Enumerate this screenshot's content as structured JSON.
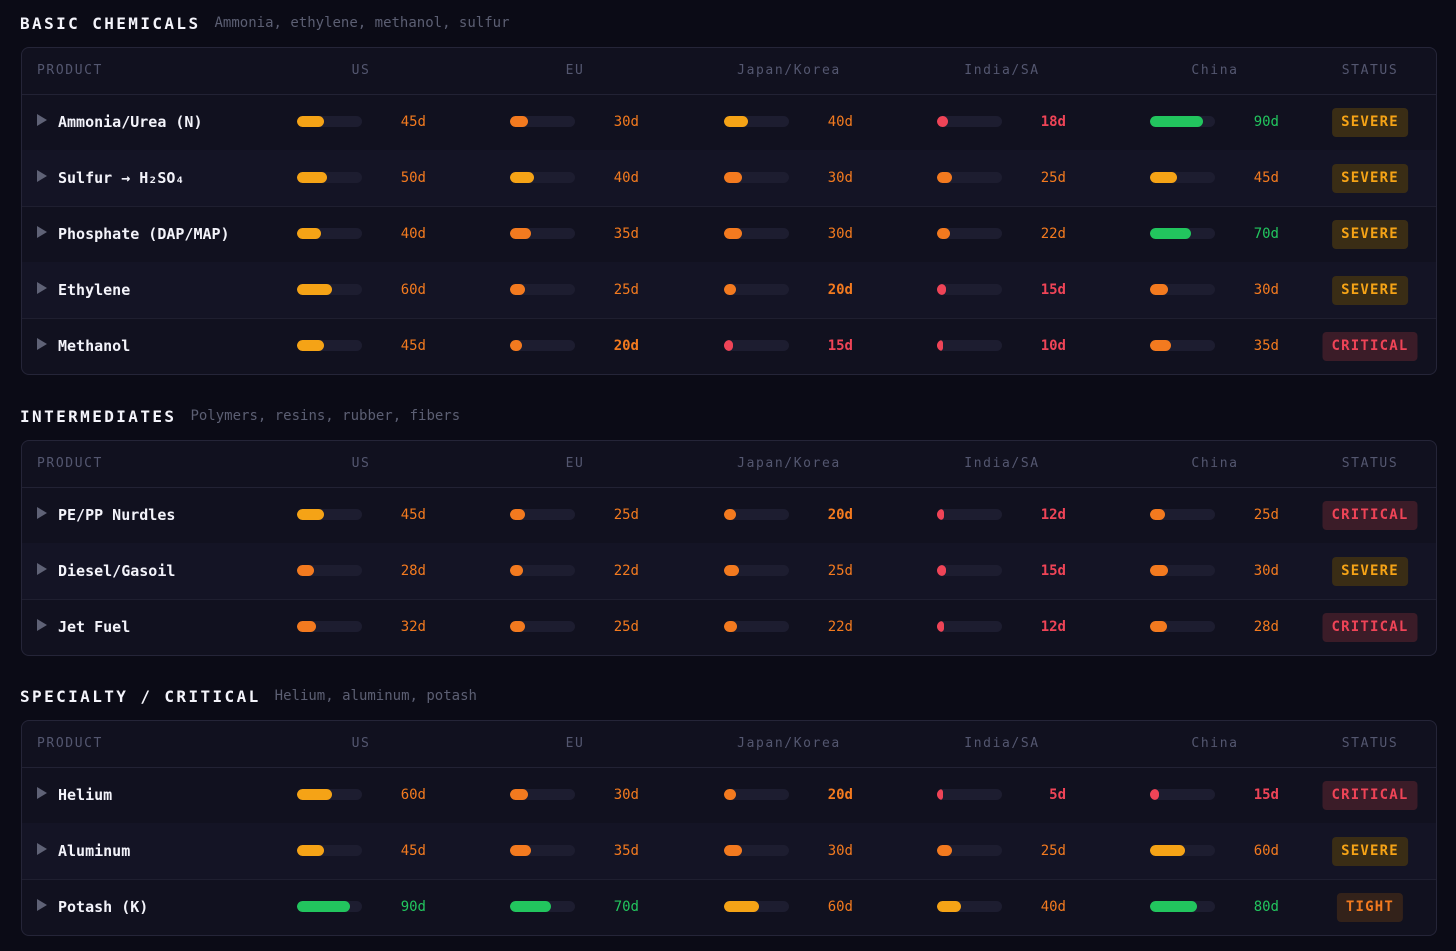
{
  "columns": {
    "product": "PRODUCT",
    "regions": [
      "US",
      "EU",
      "Japan/Korea",
      "India/SA",
      "China"
    ],
    "status": "STATUS"
  },
  "scale_max_days": 110,
  "colors": {
    "green": "#22c55e",
    "amber": "#f5a316",
    "orange": "#f37a1f",
    "red": "#ef4457",
    "severe_text": "#f5a316",
    "severe_bg": "#3a2d15",
    "critical_text": "#ef4457",
    "critical_bg": "#3b1c28",
    "tight_text": "#f37a1f",
    "tight_bg": "#33221a"
  },
  "sections": [
    {
      "title": "BASIC CHEMICALS",
      "subtitle": "Ammonia, ethylene, methanol, sulfur",
      "rows": [
        {
          "product": "Ammonia/Urea (N)",
          "days": [
            45,
            30,
            40,
            18,
            90
          ],
          "labels": [
            "45d",
            "30d",
            "40d",
            "18d",
            "90d"
          ],
          "status": "SEVERE"
        },
        {
          "product": "Sulfur → H₂SO₄",
          "days": [
            50,
            40,
            30,
            25,
            45
          ],
          "labels": [
            "50d",
            "40d",
            "30d",
            "25d",
            "45d"
          ],
          "status": "SEVERE"
        },
        {
          "product": "Phosphate (DAP/MAP)",
          "days": [
            40,
            35,
            30,
            22,
            70
          ],
          "labels": [
            "40d",
            "35d",
            "30d",
            "22d",
            "70d"
          ],
          "status": "SEVERE"
        },
        {
          "product": "Ethylene",
          "days": [
            60,
            25,
            20,
            15,
            30
          ],
          "labels": [
            "60d",
            "25d",
            "20d",
            "15d",
            "30d"
          ],
          "status": "SEVERE"
        },
        {
          "product": "Methanol",
          "days": [
            45,
            20,
            15,
            10,
            35
          ],
          "labels": [
            "45d",
            "20d",
            "15d",
            "10d",
            "35d"
          ],
          "status": "CRITICAL"
        }
      ]
    },
    {
      "title": "INTERMEDIATES",
      "subtitle": "Polymers, resins, rubber, fibers",
      "rows": [
        {
          "product": "PE/PP Nurdles",
          "days": [
            45,
            25,
            20,
            12,
            25
          ],
          "labels": [
            "45d",
            "25d",
            "20d",
            "12d",
            "25d"
          ],
          "status": "CRITICAL"
        },
        {
          "product": "Diesel/Gasoil",
          "days": [
            28,
            22,
            25,
            15,
            30
          ],
          "labels": [
            "28d",
            "22d",
            "25d",
            "15d",
            "30d"
          ],
          "status": "SEVERE"
        },
        {
          "product": "Jet Fuel",
          "days": [
            32,
            25,
            22,
            12,
            28
          ],
          "labels": [
            "32d",
            "25d",
            "22d",
            "12d",
            "28d"
          ],
          "status": "CRITICAL"
        }
      ]
    },
    {
      "title": "SPECIALTY / CRITICAL",
      "subtitle": "Helium, aluminum, potash",
      "rows": [
        {
          "product": "Helium",
          "days": [
            60,
            30,
            20,
            5,
            15
          ],
          "labels": [
            "60d",
            "30d",
            "20d",
            "5d",
            "15d"
          ],
          "status": "CRITICAL"
        },
        {
          "product": "Aluminum",
          "days": [
            45,
            35,
            30,
            25,
            60
          ],
          "labels": [
            "45d",
            "35d",
            "30d",
            "25d",
            "60d"
          ],
          "status": "SEVERE"
        },
        {
          "product": "Potash (K)",
          "days": [
            90,
            70,
            60,
            40,
            80
          ],
          "labels": [
            "90d",
            "70d",
            "60d",
            "40d",
            "80d"
          ],
          "status": "TIGHT"
        }
      ]
    }
  ]
}
